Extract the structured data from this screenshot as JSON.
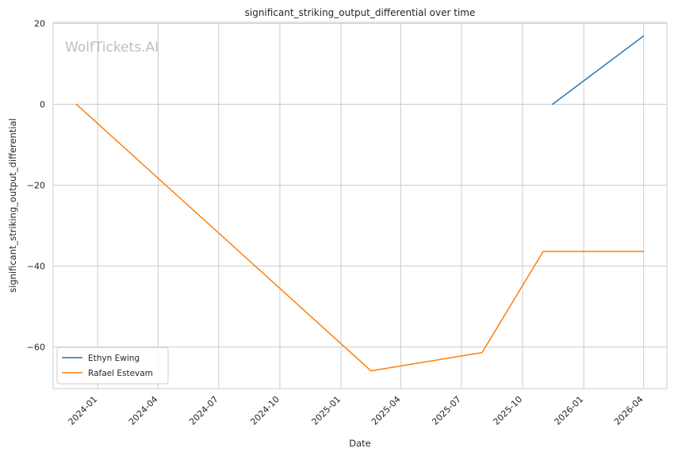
{
  "chart_data": {
    "type": "line",
    "title": "significant_striking_output_differential over time",
    "xlabel": "Date",
    "ylabel": "significant_striking_output_differential",
    "watermark": "WolfTickets.AI",
    "x_ticks": [
      "2024-01",
      "2024-04",
      "2024-07",
      "2024-10",
      "2025-01",
      "2025-04",
      "2025-07",
      "2025-10",
      "2026-01",
      "2026-04"
    ],
    "y_ticks": [
      20,
      0,
      -20,
      -40,
      -60
    ],
    "ylim": [
      -70.3,
      20.3
    ],
    "xlim": [
      "2023-10-26",
      "2026-05-06"
    ],
    "grid": true,
    "legend_position": "lower-left",
    "series": [
      {
        "name": "Ethyn Ewing",
        "color": "#1f77b4",
        "x": [
          "2025-11-15",
          "2026-04-01"
        ],
        "y": [
          0,
          16.9
        ]
      },
      {
        "name": "Rafael Estevam",
        "color": "#ff7f0e",
        "x": [
          "2023-11-30",
          "2025-02-15",
          "2025-08-01",
          "2025-11-01",
          "2026-04-01"
        ],
        "y": [
          0,
          -65.9,
          -61.4,
          -36.4,
          -36.4
        ]
      }
    ]
  }
}
